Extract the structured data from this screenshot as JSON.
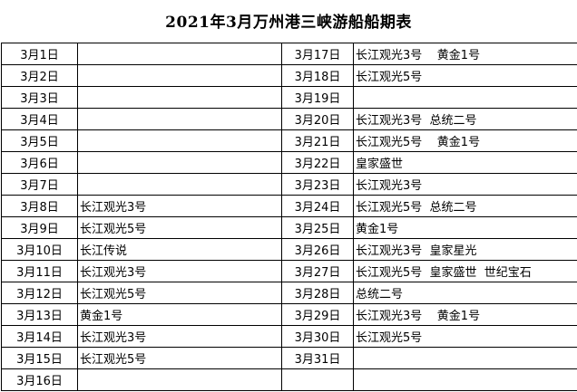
{
  "title": "2021年3月万州港三峡游船船期表",
  "left": [
    {
      "date": "3月1日",
      "ships": ""
    },
    {
      "date": "3月2日",
      "ships": ""
    },
    {
      "date": "3月3日",
      "ships": ""
    },
    {
      "date": "3月4日",
      "ships": ""
    },
    {
      "date": "3月5日",
      "ships": ""
    },
    {
      "date": "3月6日",
      "ships": ""
    },
    {
      "date": "3月7日",
      "ships": ""
    },
    {
      "date": "3月8日",
      "ships": "长江观光3号"
    },
    {
      "date": "3月9日",
      "ships": "长江观光5号"
    },
    {
      "date": "3月10日",
      "ships": "长江传说"
    },
    {
      "date": "3月11日",
      "ships": "长江观光3号"
    },
    {
      "date": "3月12日",
      "ships": "长江观光5号"
    },
    {
      "date": "3月13日",
      "ships": "黄金1号"
    },
    {
      "date": "3月14日",
      "ships": "长江观光3号"
    },
    {
      "date": "3月15日",
      "ships": "长江观光5号"
    },
    {
      "date": "3月16日",
      "ships": ""
    }
  ],
  "right": [
    {
      "date": "3月17日",
      "ships": "长江观光3号    黄金1号"
    },
    {
      "date": "3月18日",
      "ships": "长江观光5号"
    },
    {
      "date": "3月19日",
      "ships": ""
    },
    {
      "date": "3月20日",
      "ships": "长江观光3号  总统二号"
    },
    {
      "date": "3月21日",
      "ships": "长江观光5号    黄金1号"
    },
    {
      "date": "3月22日",
      "ships": "皇家盛世"
    },
    {
      "date": "3月23日",
      "ships": "长江观光3号"
    },
    {
      "date": "3月24日",
      "ships": "长江观光5号  总统二号"
    },
    {
      "date": "3月25日",
      "ships": "黄金1号"
    },
    {
      "date": "3月26日",
      "ships": "长江观光3号  皇家星光"
    },
    {
      "date": "3月27日",
      "ships": "长江观光5号  皇家盛世  世纪宝石"
    },
    {
      "date": "3月28日",
      "ships": "总统二号"
    },
    {
      "date": "3月29日",
      "ships": "长江观光3号    黄金1号"
    },
    {
      "date": "3月30日",
      "ships": "长江观光5号"
    },
    {
      "date": "3月31日",
      "ships": ""
    },
    {
      "date": "",
      "ships": ""
    }
  ]
}
